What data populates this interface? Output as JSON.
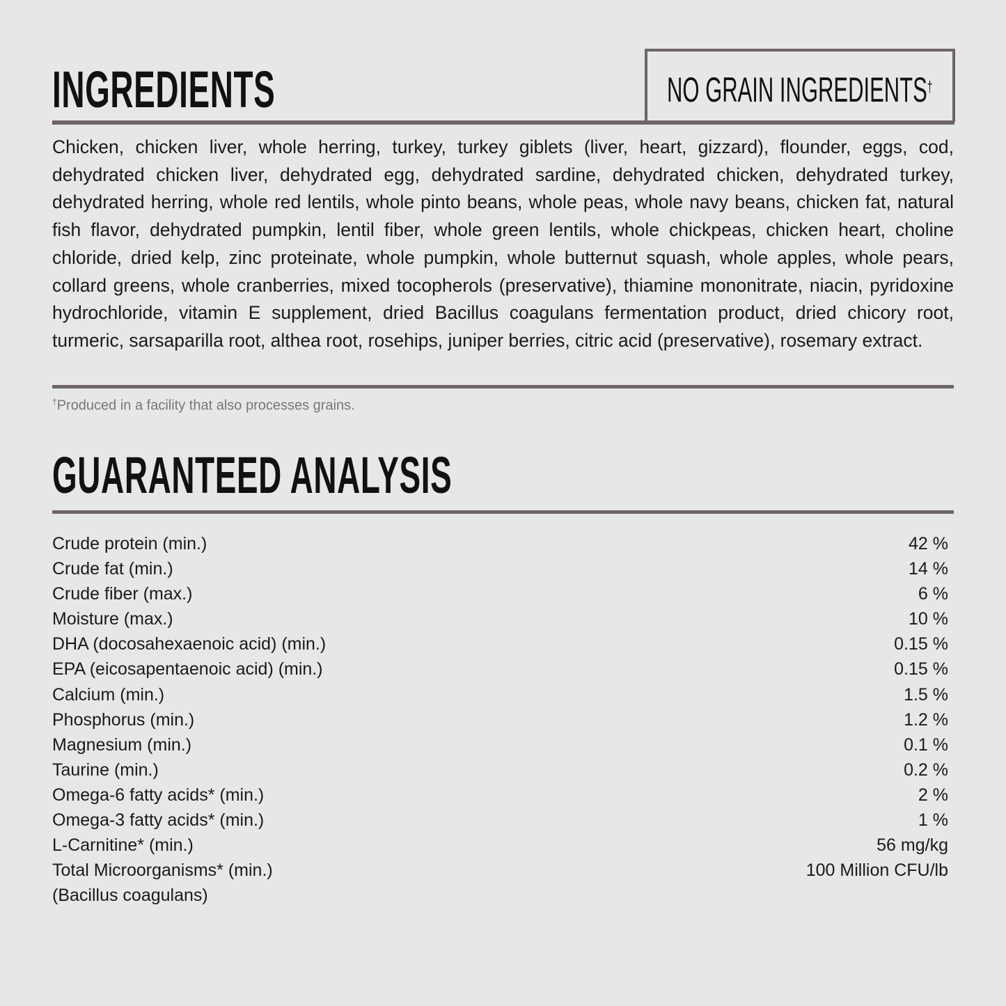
{
  "ingredients": {
    "title": "INGREDIENTS",
    "badge": "NO GRAIN INGREDIENTS",
    "badge_mark": "†",
    "text": "Chicken, chicken liver, whole herring, turkey, turkey giblets (liver, heart, gizzard), flounder, eggs, cod, dehydrated chicken liver, dehydrated egg, dehydrated sardine, dehydrated chicken, dehydrated turkey, dehydrated herring, whole red lentils, whole pinto beans, whole peas, whole navy beans, chicken fat, natural fish flavor, dehydrated pumpkin, lentil fiber, whole green lentils, whole chickpeas, chicken heart, choline chloride, dried kelp, zinc proteinate, whole pumpkin, whole butternut squash, whole apples, whole pears, collard greens, whole cranberries, mixed tocopherols (preservative), thiamine mononitrate, niacin, pyridoxine hydrochloride, vitamin E supplement, dried Bacillus coagulans fermentation product, dried chicory root, turmeric, sarsaparilla root, althea root, rosehips, juniper berries, citric acid (preservative), rosemary extract.",
    "footnote_mark": "†",
    "footnote": "Produced in a facility that also processes grains."
  },
  "analysis": {
    "title": "GUARANTEED ANALYSIS",
    "rows": [
      {
        "label": "Crude protein (min.)",
        "value": "42 %"
      },
      {
        "label": "Crude fat (min.)",
        "value": "14 %"
      },
      {
        "label": "Crude fiber (max.)",
        "value": "6 %"
      },
      {
        "label": "Moisture (max.)",
        "value": "10 %"
      },
      {
        "label": "DHA (docosahexaenoic acid) (min.)",
        "value": "0.15 %"
      },
      {
        "label": "EPA (eicosapentaenoic acid) (min.)",
        "value": "0.15 %"
      },
      {
        "label": "Calcium (min.)",
        "value": "1.5 %"
      },
      {
        "label": "Phosphorus (min.)",
        "value": "1.2 %"
      },
      {
        "label": "Magnesium (min.)",
        "value": "0.1 %"
      },
      {
        "label": "Taurine (min.)",
        "value": "0.2 %"
      },
      {
        "label": "Omega-6 fatty acids* (min.)",
        "value": "2 %"
      },
      {
        "label": "Omega-3 fatty acids* (min.)",
        "value": "1 %"
      },
      {
        "label": "L-Carnitine* (min.)",
        "value": "56 mg/kg"
      },
      {
        "label": "Total Microorganisms* (min.)",
        "value": "100 Million CFU/lb"
      }
    ],
    "last_row_sub": "(Bacillus coagulans)"
  }
}
